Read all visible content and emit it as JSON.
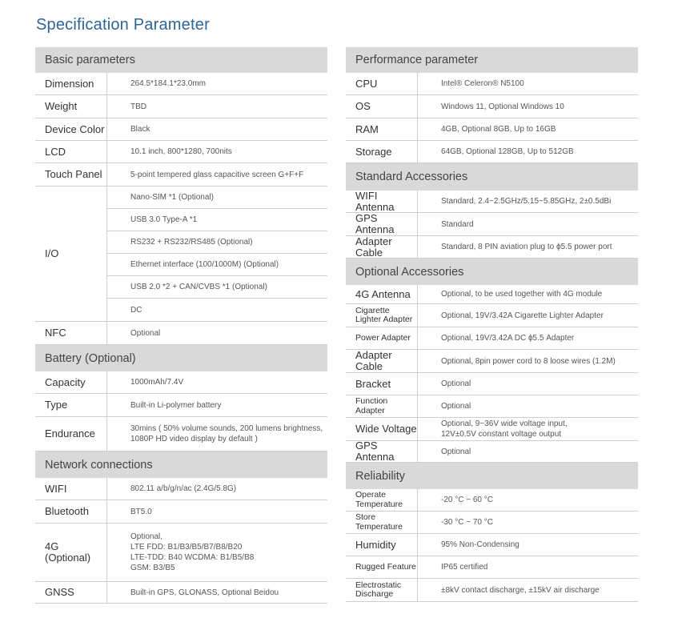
{
  "title": "Specification Parameter",
  "left": [
    {
      "header": "Basic parameters",
      "rows": [
        {
          "label": "Dimension",
          "value": "264.5*184.1*23.0mm"
        },
        {
          "label": "Weight",
          "value": "TBD"
        },
        {
          "label": "Device Color",
          "value": "Black"
        },
        {
          "label": "LCD",
          "value": "10.1 inch, 800*1280, 700nits"
        },
        {
          "label": "Touch Panel",
          "value": "5-point tempered glass capacitive screen G+F+F"
        },
        {
          "label": "I/O",
          "values": [
            "Nano-SIM *1 (Optional)",
            "USB 3.0 Type-A *1",
            "RS232 + RS232/RS485 (Optional)",
            "Ethernet interface (100/1000M) (Optional)",
            "USB 2.0 *2 + CAN/CVBS *1 (Optional)",
            "DC"
          ]
        },
        {
          "label": "NFC",
          "value": "Optional"
        }
      ]
    },
    {
      "header": "Battery (Optional)",
      "rows": [
        {
          "label": "Capacity",
          "value": "1000mAh/7.4V"
        },
        {
          "label": "Type",
          "value": "Built-in Li-polymer battery"
        },
        {
          "label": "Endurance",
          "lines": [
            "30mins ( 50% volume sounds, 200 lumens brightness,",
            "1080P HD video display by default )"
          ]
        }
      ]
    },
    {
      "header": "Network connections",
      "rows": [
        {
          "label": "WIFI",
          "value": "802.11 a/b/g/n/ac (2.4G/5.8G)"
        },
        {
          "label": "Bluetooth",
          "value": "BT5.0"
        },
        {
          "label": "4G\n(Optional)",
          "lines": [
            "Optional,",
            "LTE FDD: B1/B3/B5/B7/B8/B20",
            "LTE-TDD: B40   WCDMA: B1/B5/B8",
            "GSM: B3/B5"
          ]
        },
        {
          "label": "GNSS",
          "value": "Built-in GPS,  GLONASS, Optional Beidou"
        }
      ]
    }
  ],
  "right": [
    {
      "header": "Performance parameter",
      "rows": [
        {
          "label": "CPU",
          "value": "Intel® Celeron® N5100"
        },
        {
          "label": "OS",
          "value": "Windows 11, Optional Windows 10"
        },
        {
          "label": "RAM",
          "value": "4GB, Optional 8GB, Up to 16GB"
        },
        {
          "label": "Storage",
          "value": "64GB, Optional 128GB, Up to 512GB"
        }
      ]
    },
    {
      "header": "Standard Accessories",
      "rows": [
        {
          "label": "WIFI Antenna",
          "value": "Standard, 2.4~2.5GHz/5.15~5.85GHz, 2±0.5dBi"
        },
        {
          "label": "GPS Antenna",
          "value": "Standard"
        },
        {
          "label": "Adapter Cable",
          "value": "Standard, 8 PIN aviation plug to ϕ5.5 power port"
        }
      ]
    },
    {
      "header": "Optional Accessories",
      "rows": [
        {
          "label": "4G Antenna",
          "value": "Optional, to be used together with 4G module"
        },
        {
          "label": "Cigarette Lighter Adapter",
          "value": "Optional, 19V/3.42A Cigarette Lighter Adapter"
        },
        {
          "label": "Power Adapter",
          "value": "Optional, 19V/3.42A DC ϕ5.5 Adapter"
        },
        {
          "label": "Adapter Cable",
          "value": "Optional, 8pin power cord to 8 loose wires (1.2M)"
        },
        {
          "label": "Bracket",
          "value": "Optional"
        },
        {
          "label": "Function Adapter",
          "value": "Optional"
        },
        {
          "label": "Wide Voltage",
          "lines": [
            "Optional, 9~36V wide voltage input,",
            "12V±0.5V constant voltage output"
          ]
        },
        {
          "label": "GPS Antenna",
          "value": "Optional"
        }
      ]
    },
    {
      "header": "Reliability",
      "rows": [
        {
          "label": "Operate Temperature",
          "value": "-20 °C ~ 60 °C"
        },
        {
          "label": "Store Temperature",
          "value": "-30 °C ~ 70 °C"
        },
        {
          "label": "Humidity",
          "value": "95% Non-Condensing"
        },
        {
          "label": "Rugged Feature",
          "value": "IP65 certified"
        },
        {
          "label": "Electrostatic Discharge",
          "value": "±8kV contact discharge, ±15kV air discharge"
        }
      ]
    }
  ]
}
